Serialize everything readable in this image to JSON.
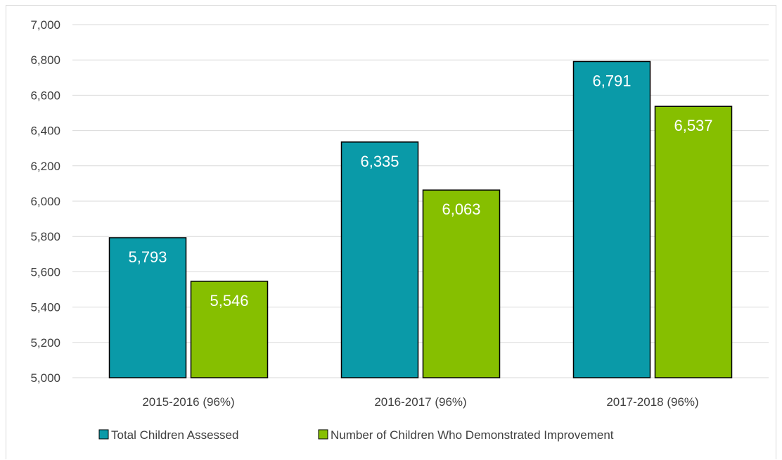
{
  "chart_data": {
    "type": "bar",
    "title": "",
    "xlabel": "",
    "ylabel": "",
    "categories": [
      "2015-2016 (96%)",
      "2016-2017 (96%)",
      "2017-2018 (96%)"
    ],
    "series": [
      {
        "name": "Total Children Assessed",
        "values": [
          5793,
          6335,
          6791
        ],
        "color": "#0a9aa8"
      },
      {
        "name": "Number of Children Who Demonstrated Improvement",
        "values": [
          5546,
          6063,
          6537
        ],
        "color": "#86bf00"
      }
    ],
    "ylim": [
      5000,
      7000
    ],
    "yticks": [
      5000,
      5200,
      5400,
      5600,
      5800,
      6000,
      6200,
      6400,
      6600,
      6800,
      7000
    ],
    "ytick_labels": [
      "5,000",
      "5,200",
      "5,400",
      "5,600",
      "5,800",
      "6,000",
      "6,200",
      "6,400",
      "6,600",
      "6,800",
      "7,000"
    ],
    "data_labels": [
      [
        "5,793",
        "6,335",
        "6,791"
      ],
      [
        "5,546",
        "6,063",
        "6,537"
      ]
    ],
    "grid": true,
    "legend_position": "bottom",
    "bar_outline_color": "#000000",
    "grid_color": "#d9d9d9"
  }
}
